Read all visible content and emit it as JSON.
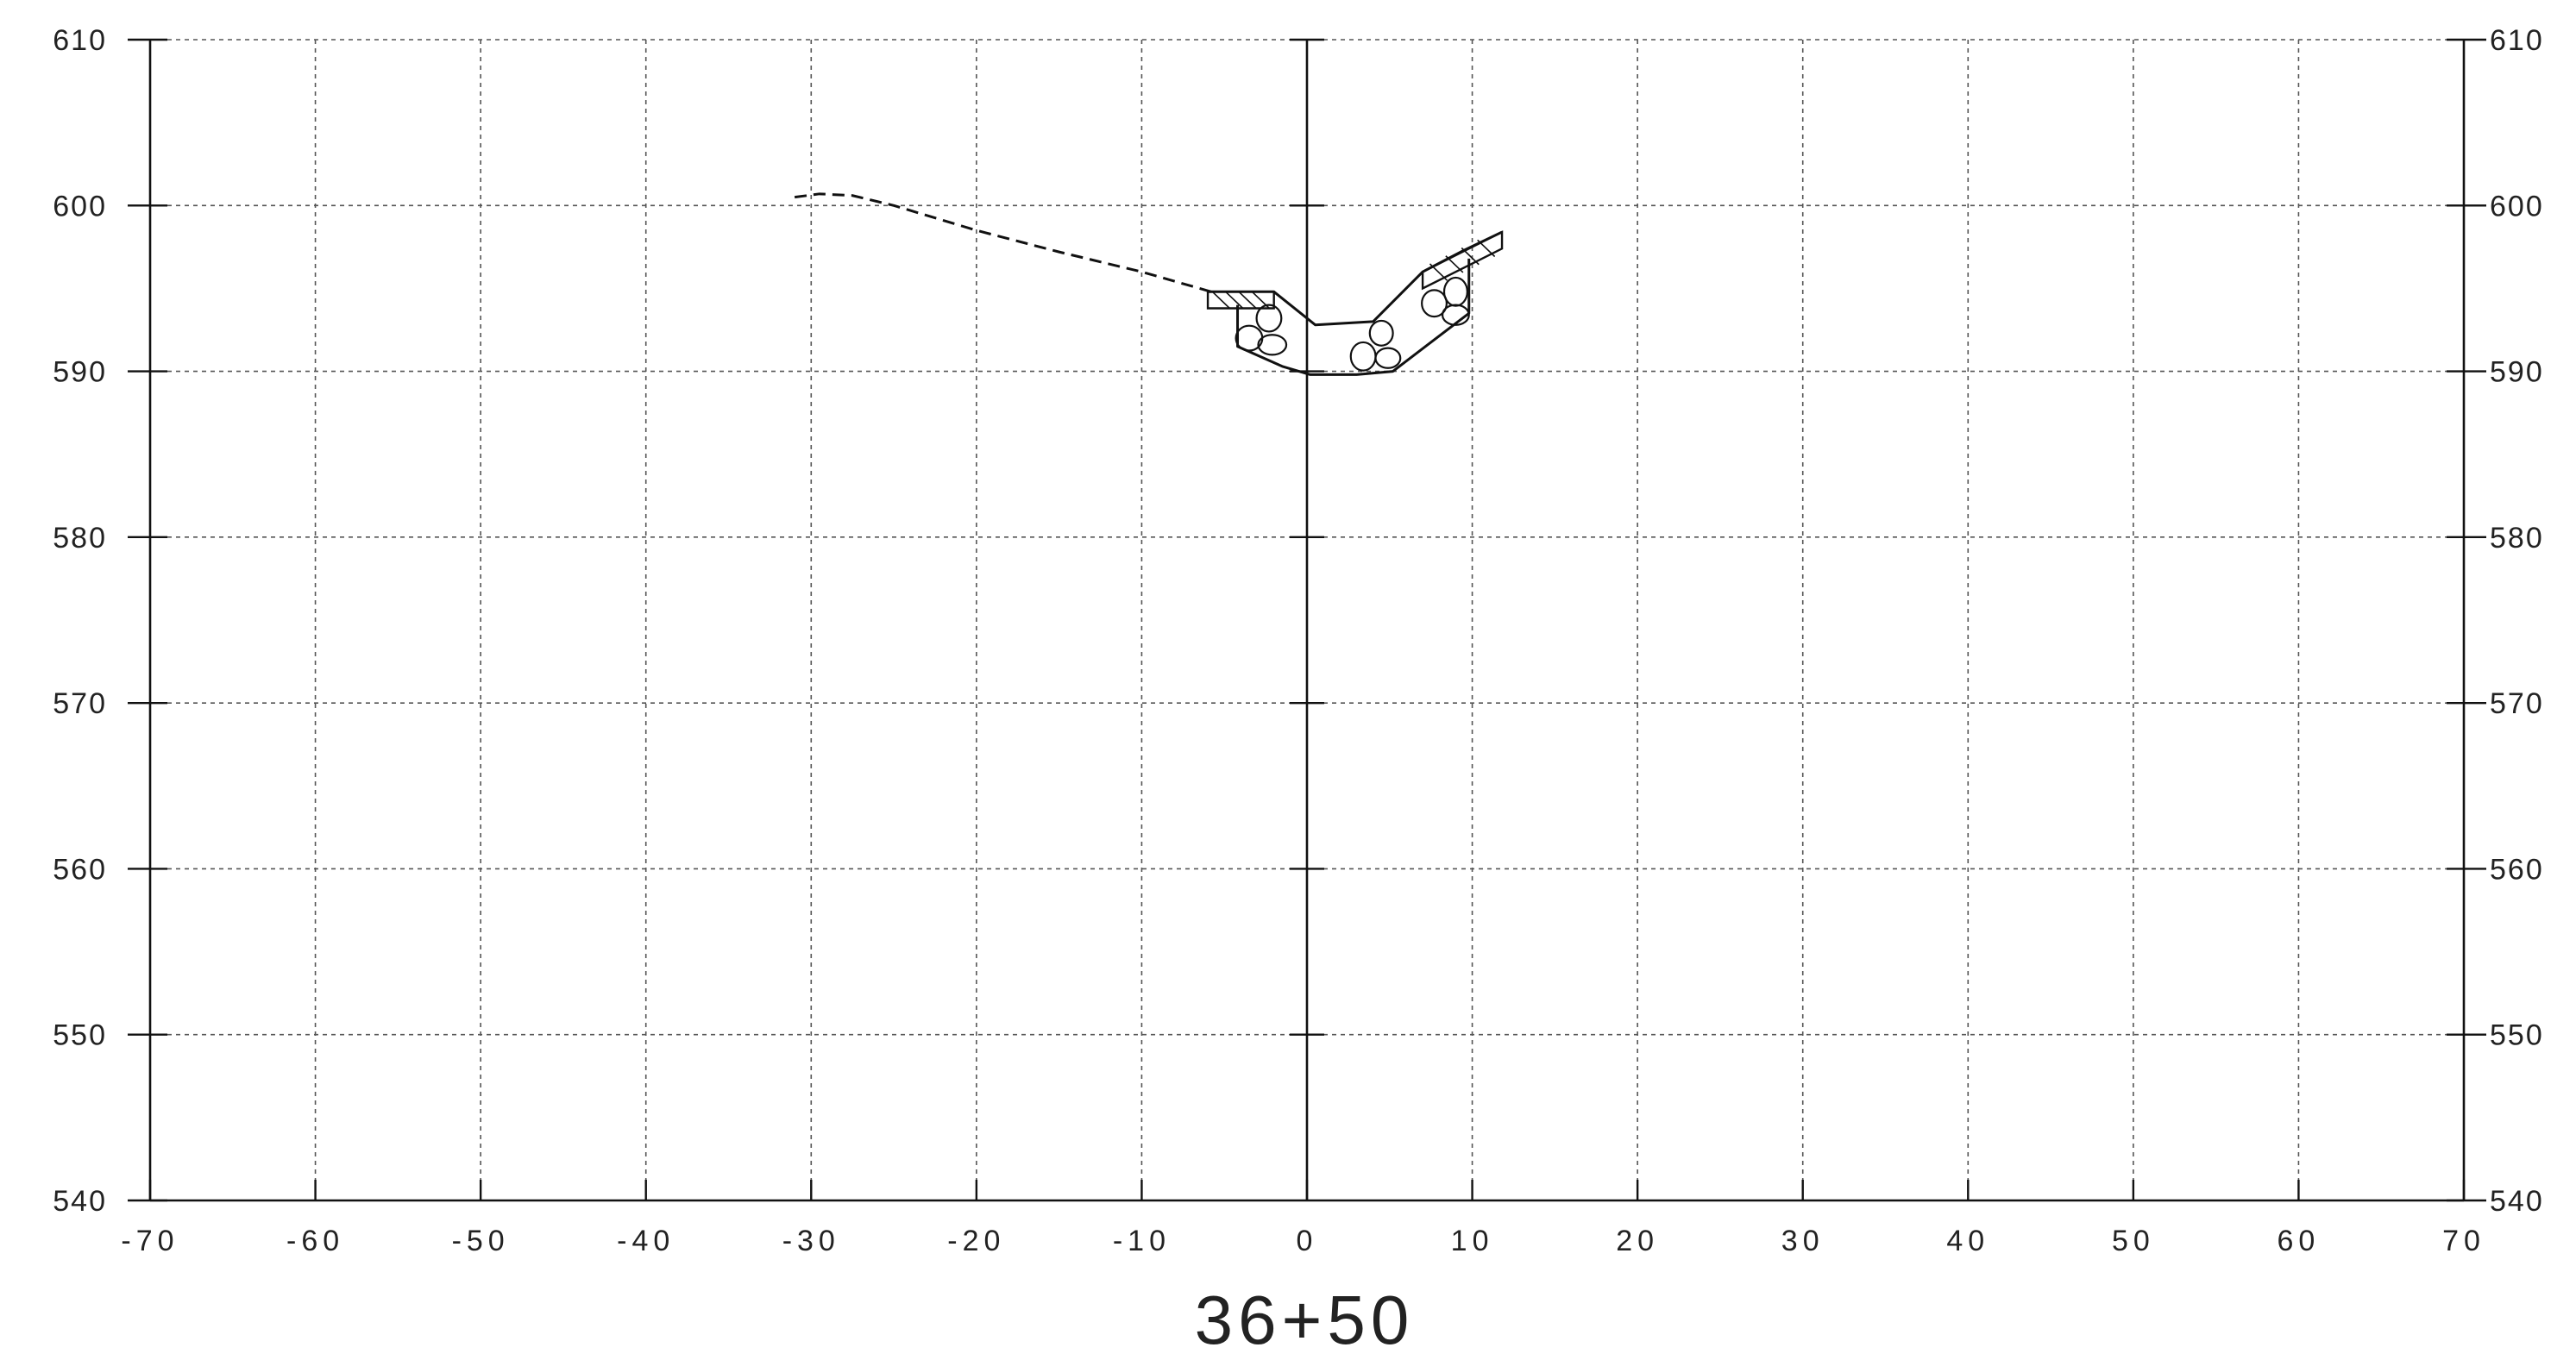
{
  "station_label": "36+50",
  "chart_data": {
    "type": "line",
    "title": "",
    "subtitle": "",
    "xlabel": "",
    "ylabel": "",
    "xlim": [
      -70,
      70
    ],
    "ylim": [
      540,
      610
    ],
    "x_ticks": [
      -70,
      -60,
      -50,
      -40,
      -30,
      -20,
      -10,
      0,
      10,
      20,
      30,
      40,
      50,
      60,
      70
    ],
    "x_tick_labels": [
      "-70",
      "-60",
      "-50",
      "-40",
      "-30",
      "-20",
      "-10",
      "0",
      "10",
      "20",
      "30",
      "40",
      "50",
      "60",
      "70"
    ],
    "y_ticks": [
      540,
      550,
      560,
      570,
      580,
      590,
      600,
      610
    ],
    "y_tick_labels": [
      "540",
      "550",
      "560",
      "570",
      "580",
      "590",
      "600",
      "610"
    ],
    "right_axis_labels": true,
    "grid": true,
    "grid_style": "dashed",
    "centerline_x": 0,
    "series": [
      {
        "style": "dashed",
        "x": [
          -31,
          -29.5,
          -27.5,
          -25,
          -20,
          -15,
          -10,
          -5.8
        ],
        "y": [
          600.5,
          600.7,
          600.6,
          600.0,
          598.5,
          597.2,
          596.0,
          594.8
        ]
      },
      {
        "style": "solid",
        "x": [
          -6,
          -2,
          0.5,
          4,
          7,
          9.5,
          11.8
        ],
        "y": [
          594.8,
          594.8,
          592.8,
          593.0,
          596.0,
          597.3,
          598.4
        ]
      },
      {
        "style": "solid",
        "x": [
          -4.2,
          -4.2,
          -1.5,
          0.2,
          3,
          5.2,
          9.8,
          9.8
        ],
        "y": [
          594.0,
          591.5,
          590.3,
          589.8,
          589.8,
          590.0,
          593.5,
          596.8
        ]
      }
    ],
    "riprap_rocks": [
      {
        "x": -3.5,
        "y": 592.0,
        "rx": 0.8,
        "ry": 0.75
      },
      {
        "x": -2.3,
        "y": 593.2,
        "rx": 0.75,
        "ry": 0.8
      },
      {
        "x": -2.1,
        "y": 591.6,
        "rx": 0.85,
        "ry": 0.6
      },
      {
        "x": 3.4,
        "y": 590.9,
        "rx": 0.75,
        "ry": 0.85
      },
      {
        "x": 4.5,
        "y": 592.3,
        "rx": 0.7,
        "ry": 0.75
      },
      {
        "x": 4.9,
        "y": 590.8,
        "rx": 0.75,
        "ry": 0.6
      },
      {
        "x": 7.7,
        "y": 594.1,
        "rx": 0.75,
        "ry": 0.8
      },
      {
        "x": 9.0,
        "y": 594.8,
        "rx": 0.7,
        "ry": 0.85
      },
      {
        "x": 9.0,
        "y": 593.4,
        "rx": 0.8,
        "ry": 0.6
      }
    ]
  }
}
